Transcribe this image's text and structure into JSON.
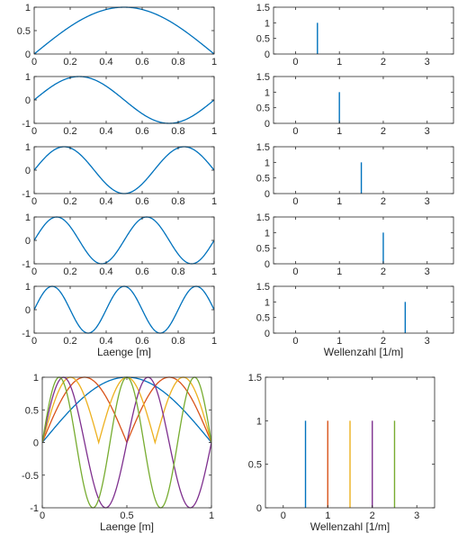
{
  "colors": [
    "#0072BD",
    "#D95319",
    "#EDB120",
    "#7E2F8E",
    "#77AC30"
  ],
  "axis_color": "#262626",
  "chart_data": [
    {
      "id": "L1",
      "type": "line",
      "xlabel": "",
      "ylabel": "",
      "xlim": [
        0,
        1
      ],
      "ylim": [
        0,
        1
      ],
      "xticks": [
        0,
        0.2,
        0.4,
        0.6,
        0.8,
        1
      ],
      "yticks": [
        0,
        0.5,
        1
      ],
      "series": [
        {
          "function": "abs_sin_pi_k_x",
          "k": 1,
          "color_index": 0
        }
      ]
    },
    {
      "id": "R1",
      "type": "stem",
      "xlabel": "",
      "ylabel": "",
      "xlim": [
        -0.5,
        3.6
      ],
      "ylim": [
        0,
        1.5
      ],
      "xticks": [
        0,
        1,
        2,
        3
      ],
      "yticks": [
        0,
        0.5,
        1,
        1.5
      ],
      "series": [
        {
          "x": [
            0.5
          ],
          "y": [
            1
          ],
          "color_index": 0
        }
      ]
    },
    {
      "id": "L2",
      "type": "line",
      "xlabel": "",
      "ylabel": "",
      "xlim": [
        0,
        1
      ],
      "ylim": [
        -1,
        1
      ],
      "xticks": [
        0,
        0.2,
        0.4,
        0.6,
        0.8,
        1
      ],
      "yticks": [
        -1,
        0,
        1
      ],
      "series": [
        {
          "function": "sin_pi_k_x",
          "k": 2,
          "color_index": 0
        }
      ]
    },
    {
      "id": "R2",
      "type": "stem",
      "xlabel": "",
      "ylabel": "",
      "xlim": [
        -0.5,
        3.6
      ],
      "ylim": [
        0,
        1.5
      ],
      "xticks": [
        0,
        1,
        2,
        3
      ],
      "yticks": [
        0,
        0.5,
        1,
        1.5
      ],
      "series": [
        {
          "x": [
            1
          ],
          "y": [
            1
          ],
          "color_index": 0
        }
      ]
    },
    {
      "id": "L3",
      "type": "line",
      "xlabel": "",
      "ylabel": "",
      "xlim": [
        0,
        1
      ],
      "ylim": [
        -1,
        1
      ],
      "xticks": [
        0,
        0.2,
        0.4,
        0.6,
        0.8,
        1
      ],
      "yticks": [
        -1,
        0,
        1
      ],
      "series": [
        {
          "function": "sin_pi_k_x",
          "k": 3,
          "color_index": 0
        }
      ]
    },
    {
      "id": "R3",
      "type": "stem",
      "xlabel": "",
      "ylabel": "",
      "xlim": [
        -0.5,
        3.6
      ],
      "ylim": [
        0,
        1.5
      ],
      "xticks": [
        0,
        1,
        2,
        3
      ],
      "yticks": [
        0,
        0.5,
        1,
        1.5
      ],
      "series": [
        {
          "x": [
            1.5
          ],
          "y": [
            1
          ],
          "color_index": 0
        }
      ]
    },
    {
      "id": "L4",
      "type": "line",
      "xlabel": "",
      "ylabel": "",
      "xlim": [
        0,
        1
      ],
      "ylim": [
        -1,
        1
      ],
      "xticks": [
        0,
        0.2,
        0.4,
        0.6,
        0.8,
        1
      ],
      "yticks": [
        -1,
        0,
        1
      ],
      "series": [
        {
          "function": "sin_pi_k_x",
          "k": 4,
          "color_index": 0
        }
      ]
    },
    {
      "id": "R4",
      "type": "stem",
      "xlabel": "",
      "ylabel": "",
      "xlim": [
        -0.5,
        3.6
      ],
      "ylim": [
        0,
        1.5
      ],
      "xticks": [
        0,
        1,
        2,
        3
      ],
      "yticks": [
        0,
        0.5,
        1,
        1.5
      ],
      "series": [
        {
          "x": [
            2
          ],
          "y": [
            1
          ],
          "color_index": 0
        }
      ]
    },
    {
      "id": "L5",
      "type": "line",
      "xlabel": "Laenge [m]",
      "ylabel": "",
      "xlim": [
        0,
        1
      ],
      "ylim": [
        -1,
        1
      ],
      "xticks": [
        0,
        0.2,
        0.4,
        0.6,
        0.8,
        1
      ],
      "yticks": [
        -1,
        0,
        1
      ],
      "series": [
        {
          "function": "sin_pi_k_x",
          "k": 5,
          "color_index": 0
        }
      ]
    },
    {
      "id": "R5",
      "type": "stem",
      "xlabel": "Wellenzahl [1/m]",
      "ylabel": "",
      "xlim": [
        -0.5,
        3.6
      ],
      "ylim": [
        0,
        1.5
      ],
      "xticks": [
        0,
        1,
        2,
        3
      ],
      "yticks": [
        0,
        0.5,
        1,
        1.5
      ],
      "series": [
        {
          "x": [
            2.5
          ],
          "y": [
            1
          ],
          "color_index": 0
        }
      ]
    },
    {
      "id": "LB",
      "type": "line",
      "xlabel": "Laenge [m]",
      "ylabel": "",
      "xlim": [
        0,
        1
      ],
      "ylim": [
        -1,
        1
      ],
      "xticks": [
        0,
        0.5,
        1
      ],
      "yticks": [
        -1,
        -0.5,
        0,
        0.5,
        1
      ],
      "series": [
        {
          "function": "abs_sin_pi_k_x",
          "k": 1,
          "color_index": 0
        },
        {
          "function": "abs_sin_pi_k_x",
          "k": 2,
          "color_index": 1
        },
        {
          "function": "abs_sin_pi_k_x",
          "k": 3,
          "color_index": 2
        },
        {
          "function": "sin_pi_k_x",
          "k": 4,
          "color_index": 3
        },
        {
          "function": "sin_pi_k_x",
          "k": 5,
          "color_index": 4
        }
      ]
    },
    {
      "id": "RB",
      "type": "stem",
      "xlabel": "Wellenzahl [1/m]",
      "ylabel": "",
      "xlim": [
        -0.4,
        3.4
      ],
      "ylim": [
        0,
        1.5
      ],
      "xticks": [
        0,
        1,
        2,
        3
      ],
      "yticks": [
        0,
        0.5,
        1,
        1.5
      ],
      "series": [
        {
          "x": [
            0.5
          ],
          "y": [
            1
          ],
          "color_index": 0
        },
        {
          "x": [
            1
          ],
          "y": [
            1
          ],
          "color_index": 1
        },
        {
          "x": [
            1.5
          ],
          "y": [
            1
          ],
          "color_index": 2
        },
        {
          "x": [
            2
          ],
          "y": [
            1
          ],
          "color_index": 3
        },
        {
          "x": [
            2.5
          ],
          "y": [
            1
          ],
          "color_index": 4
        }
      ]
    }
  ]
}
